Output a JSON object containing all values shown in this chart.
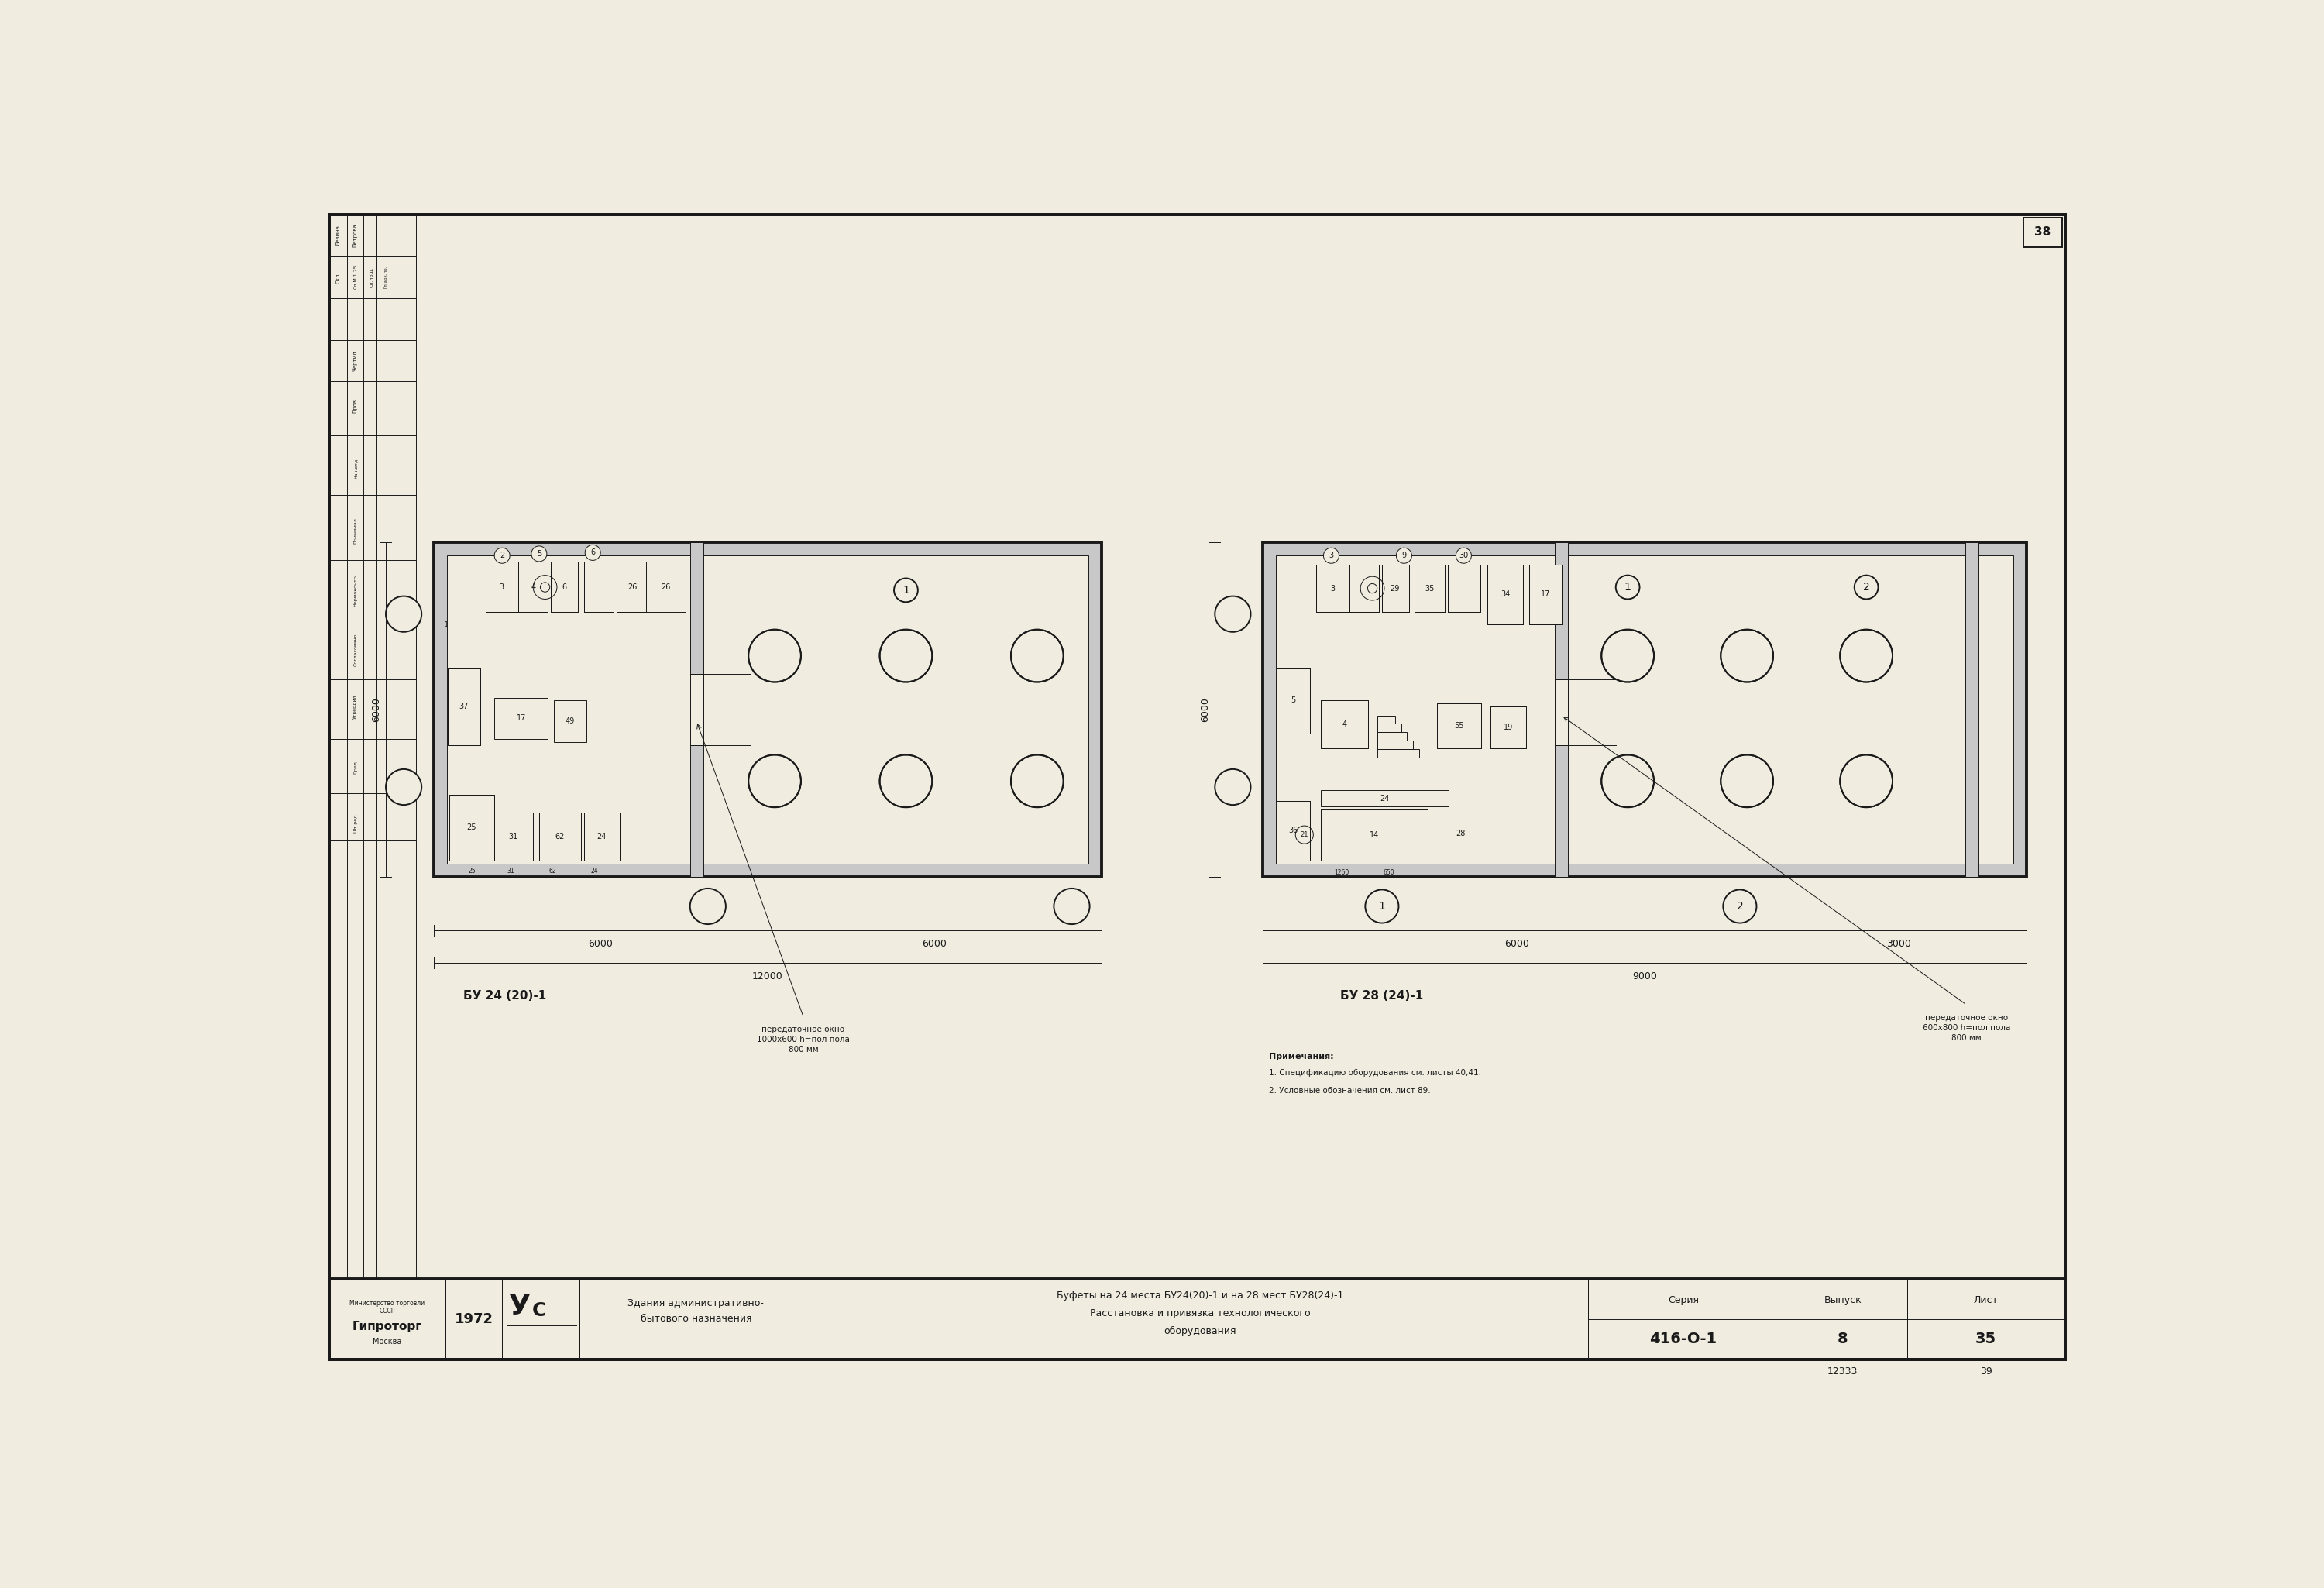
{
  "bg_color": "#f0ece0",
  "line_color": "#1a1a1a",
  "plan1_label": "БУ 24 (20)-1",
  "plan2_label": "БУ 28 (24)-1",
  "dim1_left": "6000",
  "dim1_right": "6000",
  "dim1_total": "12000",
  "dim2_left": "6000",
  "dim2_right": "3000",
  "dim2_total": "9000",
  "pass_window1": "передаточное окно\n1000х600 h=пол пола\n800 мм",
  "pass_window2": "передаточное окно\n600х800 h=пол пола\n800 мм",
  "notes_title": "Примечания:",
  "notes_line1": "1. Спецификацию оборудования см. листы 40,41.",
  "notes_line2": "2. Условные обозначения см. лист 89.",
  "height_label": "6000",
  "height_label2": "6000",
  "sheet_num": "38",
  "doc_num": "12333",
  "page_num": "39",
  "year": "1972",
  "series_top": "Серия",
  "series_val": "416-О-1",
  "vypusk_top": "Выпуск",
  "vypusk_val": "8",
  "list_top": "Лист",
  "list_val": "35",
  "title_left_line1": "Здания административно-",
  "title_left_line2": "бытового назначения",
  "title_main_line1": "Буфеты на 24 места БУ24(20)-1 и на 28 мест БУ28(24)-1",
  "title_main_line2": "Расстановка и привязка технологического",
  "title_main_line3": "оборудования",
  "org_name": "Гипроторг",
  "ministry": "Министерство торговли\nСССР\nМосква"
}
